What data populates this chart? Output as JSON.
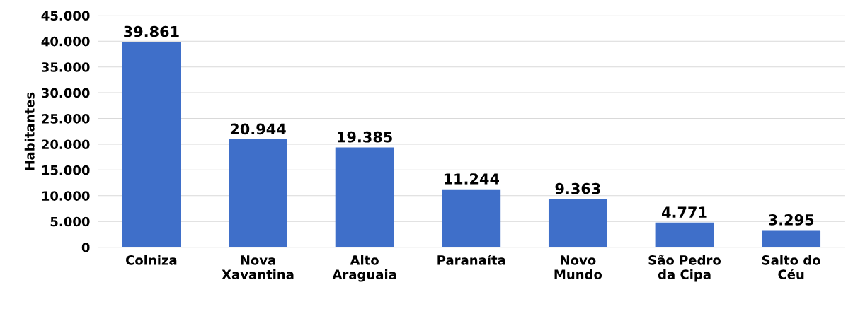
{
  "chart_data": {
    "type": "bar",
    "ylabel": "Habitantes",
    "categories": [
      "Colniza",
      "Nova\nXavantina",
      "Alto\nAraguaia",
      "Paranaíta",
      "Novo\nMundo",
      "São Pedro\nda Cipa",
      "Salto do\nCéu"
    ],
    "values": [
      39861,
      20944,
      19385,
      11244,
      9363,
      4771,
      3295
    ],
    "value_labels": [
      "39.861",
      "20.944",
      "19.385",
      "11.244",
      "9.363",
      "4.771",
      "3.295"
    ],
    "color": "#3f6fc9",
    "ylim": [
      0,
      45000
    ],
    "yticks": [
      {
        "value": 0,
        "label": "0"
      },
      {
        "value": 5000,
        "label": "5.000"
      },
      {
        "value": 10000,
        "label": "10.000"
      },
      {
        "value": 15000,
        "label": "15.000"
      },
      {
        "value": 20000,
        "label": "20.000"
      },
      {
        "value": 25000,
        "label": "25.000"
      },
      {
        "value": 30000,
        "label": "30.000"
      },
      {
        "value": 35000,
        "label": "35.000"
      },
      {
        "value": 40000,
        "label": "40.000"
      },
      {
        "value": 45000,
        "label": "45.000"
      }
    ],
    "grid": "y",
    "legend": false
  }
}
